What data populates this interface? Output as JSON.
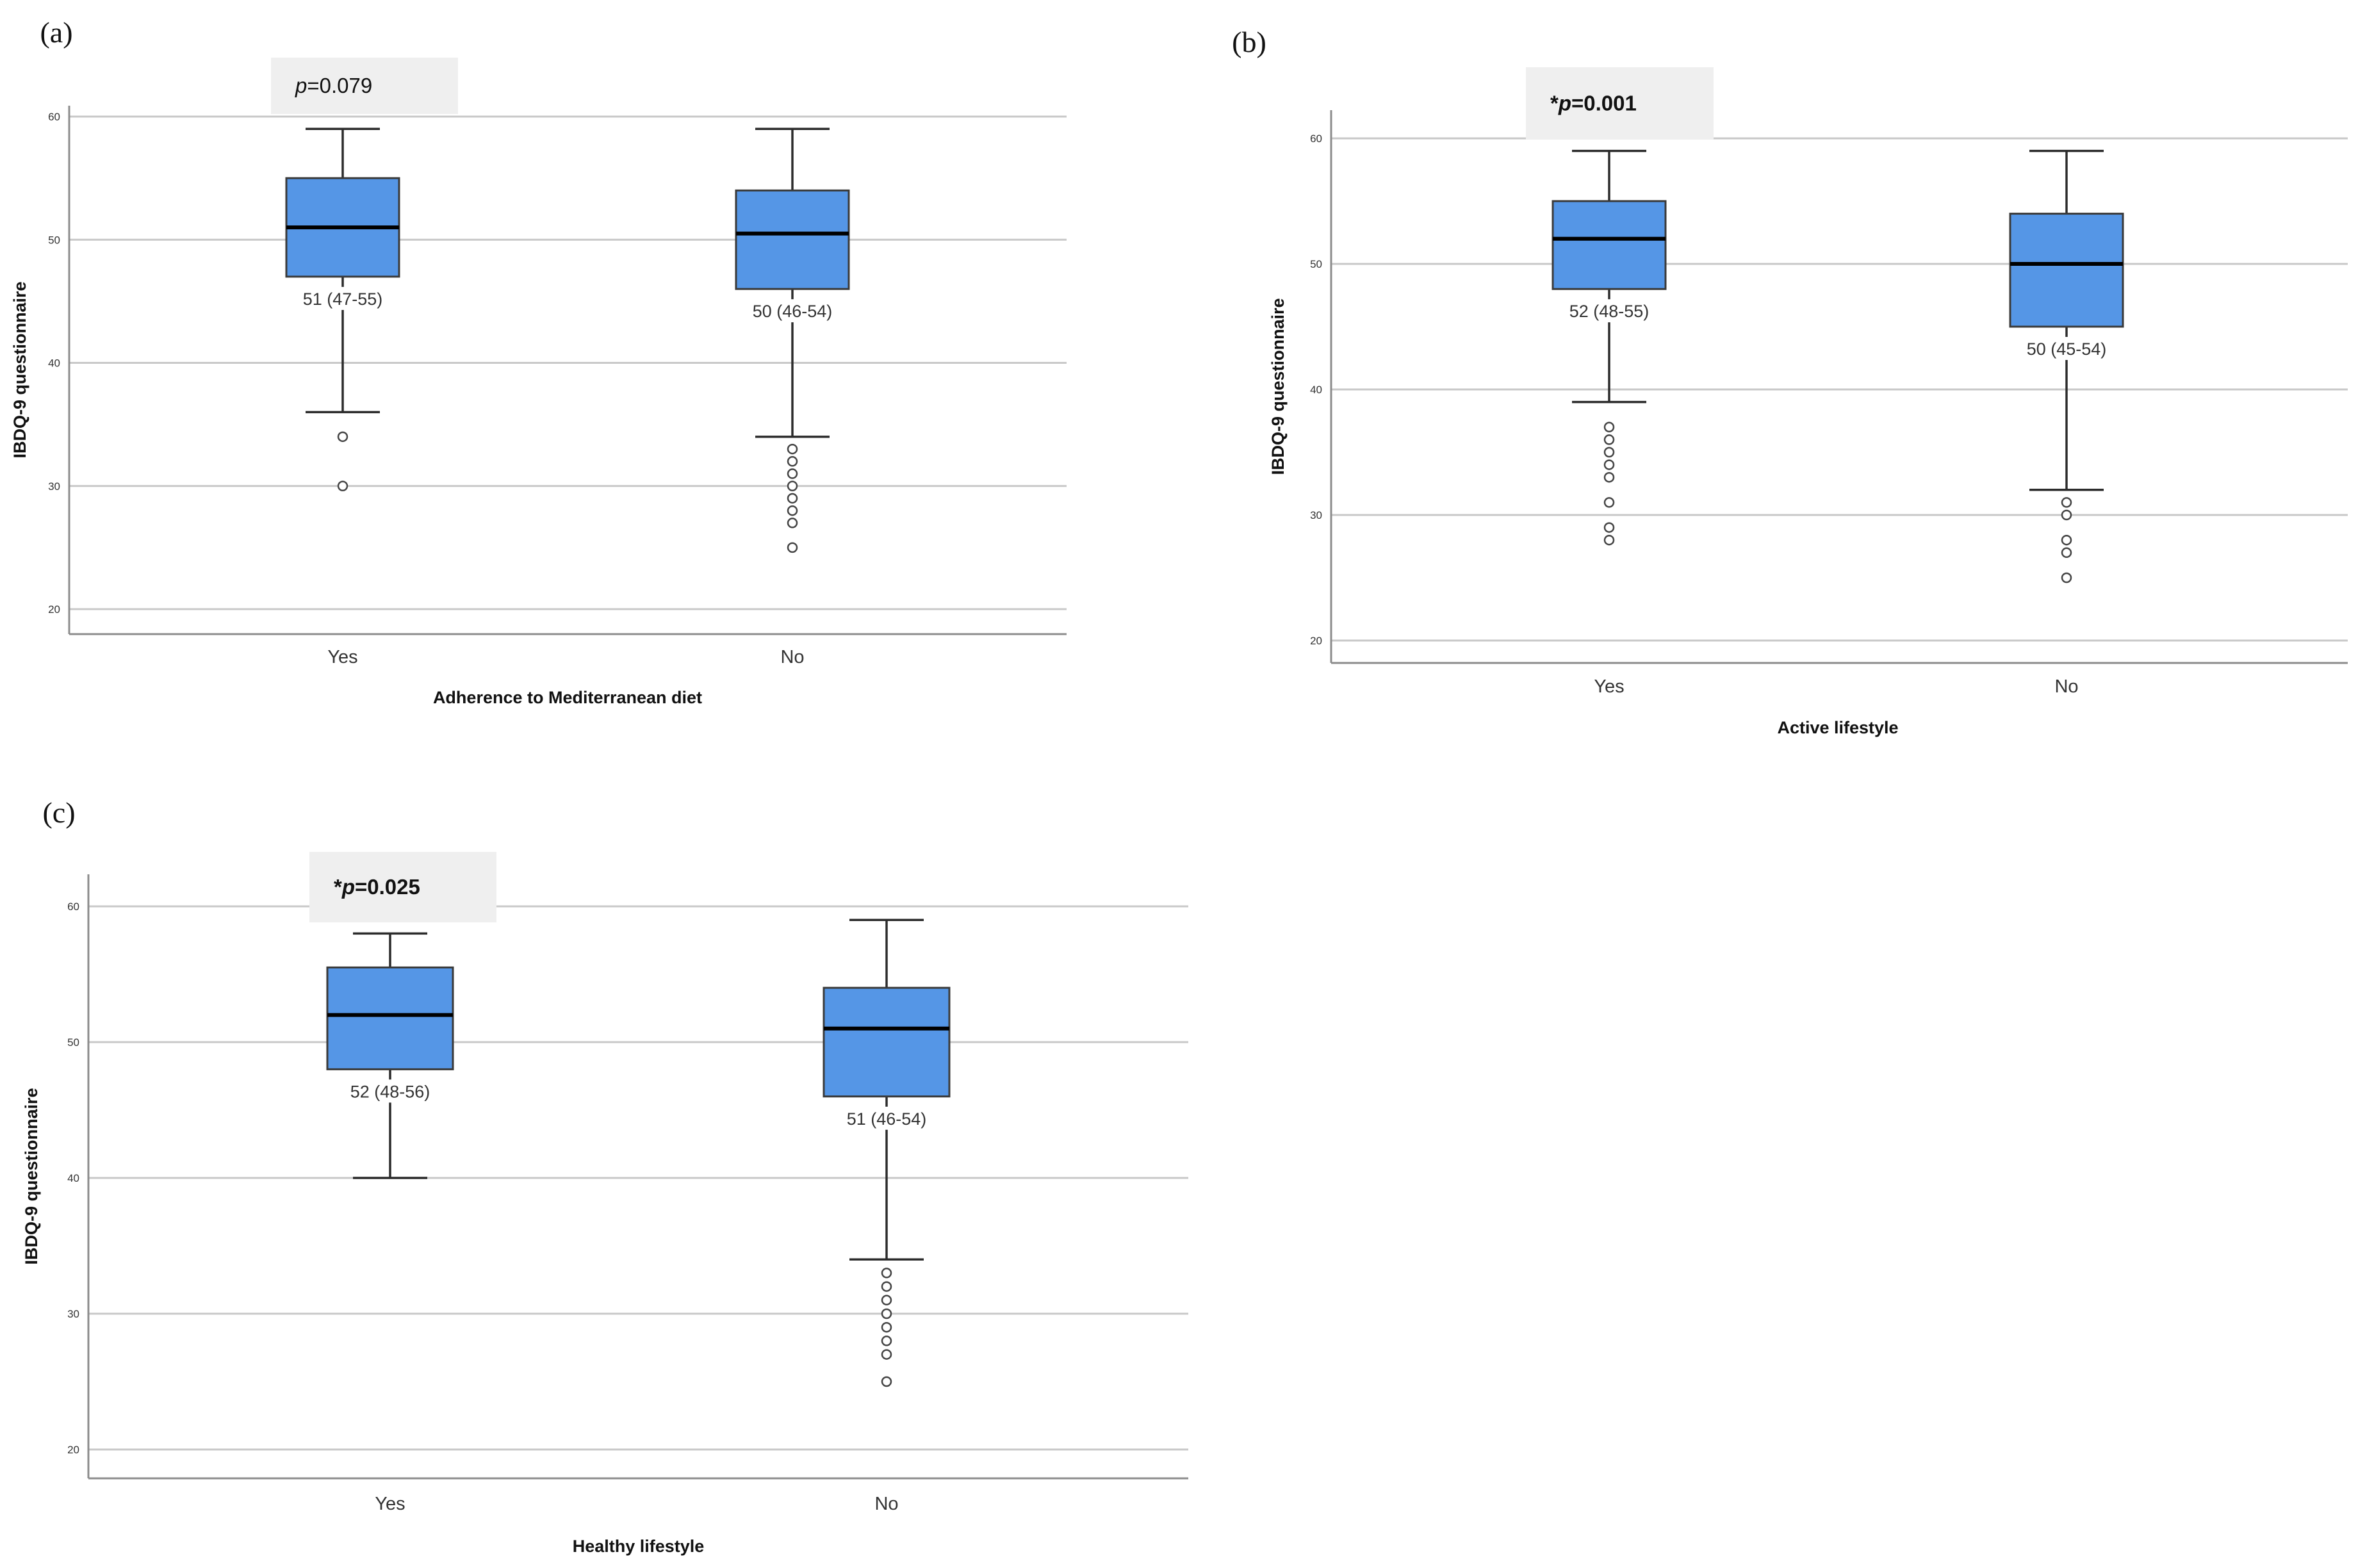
{
  "chart_data": [
    {
      "type": "box",
      "panel_label": "(a)",
      "title": "",
      "xlabel": "Adherence to Mediterranean diet",
      "ylabel": "IBDQ-9 questionnaire",
      "ylim": [
        18,
        62
      ],
      "yticks": [
        "20",
        "30",
        "40",
        "50",
        "60"
      ],
      "grid": true,
      "p_value": {
        "star": "",
        "p": "p",
        "rest": "=0.079",
        "significant": false
      },
      "categories": [
        "Yes",
        "No"
      ],
      "boxes": [
        {
          "name": "Yes",
          "min": 36,
          "q1": 47,
          "median": 51,
          "q3": 55,
          "max": 59,
          "outliers": [
            34,
            30
          ],
          "label": "51 (47-55)"
        },
        {
          "name": "No",
          "min": 34,
          "q1": 46,
          "median": 50.5,
          "q3": 54,
          "max": 59,
          "outliers": [
            33,
            32,
            31,
            30,
            29,
            28,
            27,
            25
          ],
          "label": "50 (46-54)"
        }
      ]
    },
    {
      "type": "box",
      "panel_label": "(b)",
      "title": "",
      "xlabel": "Active lifestyle",
      "ylabel": "IBDQ-9 questionnaire",
      "ylim": [
        18,
        62
      ],
      "yticks": [
        "20",
        "30",
        "40",
        "50",
        "60"
      ],
      "grid": true,
      "p_value": {
        "star": "*",
        "p": "p",
        "rest": "=0.001",
        "significant": true
      },
      "categories": [
        "Yes",
        "No"
      ],
      "boxes": [
        {
          "name": "Yes",
          "min": 39,
          "q1": 48,
          "median": 52,
          "q3": 55,
          "max": 59,
          "outliers": [
            37,
            36,
            35,
            34,
            33,
            31,
            29,
            28
          ],
          "label": "52 (48-55)"
        },
        {
          "name": "No",
          "min": 32,
          "q1": 45,
          "median": 50,
          "q3": 54,
          "max": 59,
          "outliers": [
            31,
            30,
            28,
            27,
            25
          ],
          "label": "50 (45-54)"
        }
      ]
    },
    {
      "type": "box",
      "panel_label": "(c)",
      "title": "",
      "xlabel": "Healthy lifestyle",
      "ylabel": "IBDQ-9 questionnaire",
      "ylim": [
        18,
        62
      ],
      "yticks": [
        "20",
        "30",
        "40",
        "50",
        "60"
      ],
      "grid": true,
      "p_value": {
        "star": "*",
        "p": "p",
        "rest": "=0.025",
        "significant": true
      },
      "categories": [
        "Yes",
        "No"
      ],
      "boxes": [
        {
          "name": "Yes",
          "min": 40,
          "q1": 48,
          "median": 52,
          "q3": 55.5,
          "max": 58,
          "outliers": [],
          "label": "52 (48-56)"
        },
        {
          "name": "No",
          "min": 34,
          "q1": 46,
          "median": 51,
          "q3": 54,
          "max": 59,
          "outliers": [
            33,
            32,
            31,
            30,
            29,
            28,
            27,
            25
          ],
          "label": "51 (46-54)"
        }
      ]
    }
  ],
  "colors": {
    "box_fill": "#5596E6",
    "box_stroke": "#3A3A3A",
    "grid": "#C8C8C8",
    "axis": "#8C8C8C",
    "pbox": "#EFEFEF"
  }
}
